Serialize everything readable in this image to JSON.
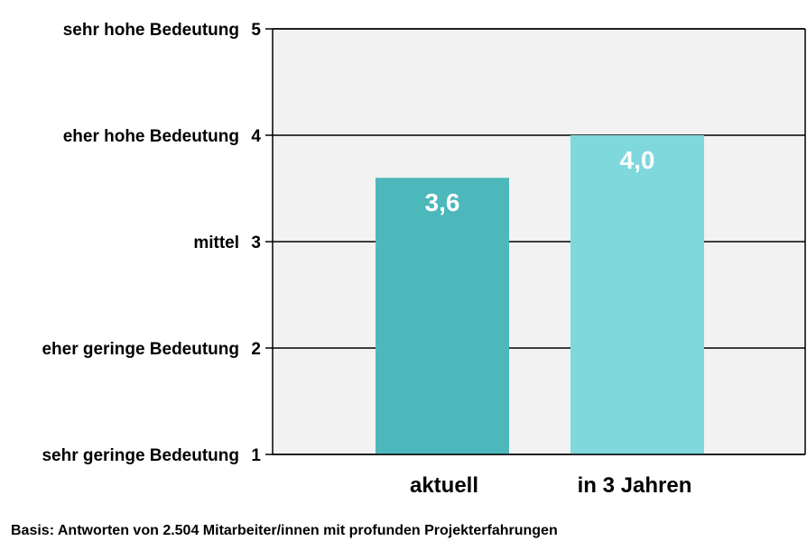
{
  "chart_data": {
    "type": "bar",
    "categories": [
      "aktuell",
      "in 3 Jahren"
    ],
    "values": [
      3.6,
      4.0
    ],
    "value_labels": [
      "3,6",
      "4,0"
    ],
    "colors": [
      "#4db8bb",
      "#7fd8dc"
    ],
    "ylim": [
      1,
      5
    ],
    "yticks": [
      1,
      2,
      3,
      4,
      5
    ],
    "ytick_descriptions": [
      "sehr geringe Bedeutung",
      "eher geringe Bedeutung",
      "mittel",
      "eher hohe Bedeutung",
      "sehr hohe Bedeutung"
    ],
    "grid": true,
    "plot_background": "#f2f2f2"
  },
  "footnote": "Basis: Antworten von 2.504 Mitarbeiter/innen mit profunden Projekterfahrungen"
}
